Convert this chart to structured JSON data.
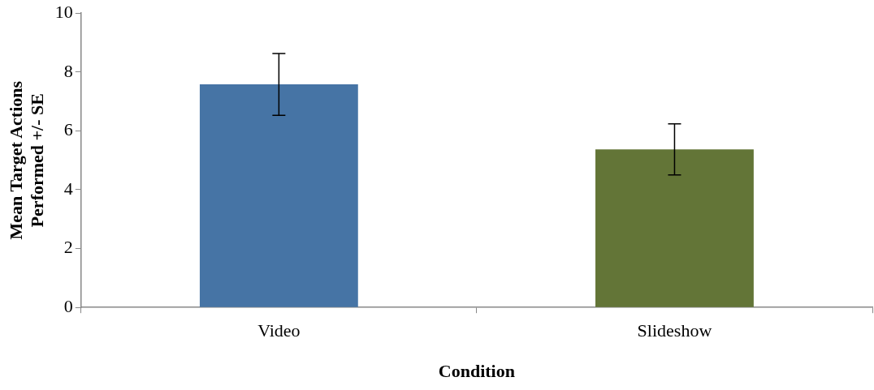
{
  "chart_data": {
    "type": "bar",
    "xlabel": "Condition",
    "ylabel": "Mean Target Actions\nPerformed +/- SE",
    "categories": [
      "Video",
      "Slideshow"
    ],
    "values": [
      7.58,
      5.37
    ],
    "colors": [
      "#4674a5",
      "#637537"
    ],
    "errors": [
      1.05,
      0.87
    ],
    "ylim": [
      0,
      10
    ],
    "yticks": [
      0,
      2,
      4,
      6,
      8,
      10
    ],
    "grid": false,
    "legend": false
  }
}
